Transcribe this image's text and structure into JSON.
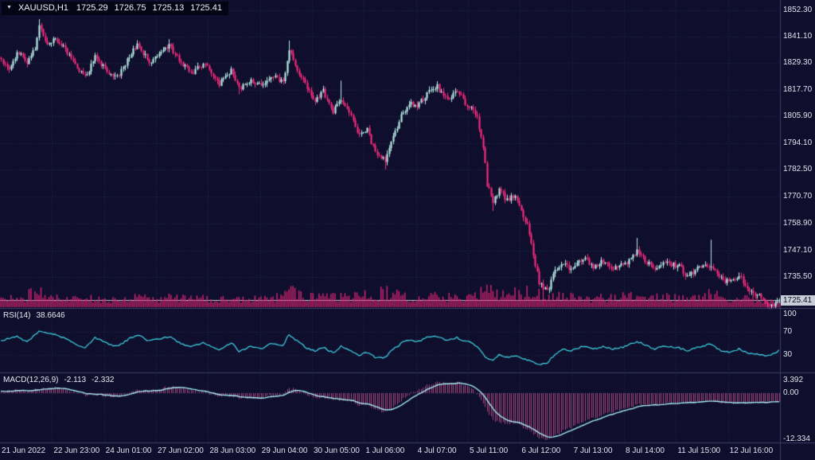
{
  "header": {
    "symbol_period": "XAUUSD,H1",
    "open": "1725.29",
    "high": "1726.75",
    "low": "1725.13",
    "close": "1725.41"
  },
  "icons": {
    "dropdown_triangle": "▼"
  },
  "panes": {
    "rsi": {
      "label": "RSI(14)",
      "value": "38.6646"
    },
    "macd": {
      "label": "MACD(12,26,9)",
      "value_main": "-2.113",
      "value_signal": "-2.332"
    }
  },
  "colors": {
    "background": "#0f0f2d",
    "grid": "#26264e",
    "separator": "#3e3e68",
    "bull": "#b6e9e4",
    "bear": "#f22a7c",
    "volume": "#d92472",
    "rsi_line": "#3fd9e8",
    "macd_signal": "#a6ecf2",
    "macd_histogram": "#a4487a",
    "price_line": "#c2c2d0",
    "axis_text": "#e2e2ee",
    "tag_bg": "#c9cdd8",
    "tag_text": "#0c0c24"
  },
  "chart_data": [
    {
      "type": "candlestick",
      "pane": "main",
      "title": "XAUUSD,H1",
      "current_price": 1725.41,
      "last_ohlc": {
        "open": 1725.29,
        "high": 1726.75,
        "low": 1725.13,
        "close": 1725.41
      },
      "ylim": [
        1722.2,
        1857.0
      ],
      "bars_total": 390,
      "bars_per_x_tick": 26,
      "y_tick_labels": [
        "1852.30",
        "1841.10",
        "1829.30",
        "1817.70",
        "1805.90",
        "1794.10",
        "1782.50",
        "1770.70",
        "1758.90",
        "1747.10",
        "1735.50",
        "1723.70"
      ],
      "x_tick_labels": [
        "21 Jun 2022",
        "22 Jun 23:00",
        "24 Jun 01:00",
        "27 Jun 02:00",
        "28 Jun 03:00",
        "29 Jun 04:00",
        "30 Jun 05:00",
        "1 Jul 06:00",
        "4 Jul 07:00",
        "5 Jul 11:00",
        "6 Jul 12:00",
        "7 Jul 13:00",
        "8 Jul 14:00",
        "11 Jul 15:00",
        "12 Jul 16:00"
      ],
      "close_waypoints": [
        [
          0,
          1831
        ],
        [
          4,
          1826
        ],
        [
          8,
          1834
        ],
        [
          13,
          1830
        ],
        [
          17,
          1836
        ],
        [
          19,
          1846
        ],
        [
          23,
          1838
        ],
        [
          27,
          1840
        ],
        [
          32,
          1835
        ],
        [
          38,
          1828
        ],
        [
          42,
          1823
        ],
        [
          47,
          1832
        ],
        [
          52,
          1827
        ],
        [
          58,
          1823
        ],
        [
          64,
          1832
        ],
        [
          68,
          1838
        ],
        [
          74,
          1830
        ],
        [
          79,
          1833
        ],
        [
          84,
          1837
        ],
        [
          90,
          1829
        ],
        [
          95,
          1825
        ],
        [
          101,
          1829
        ],
        [
          105,
          1825
        ],
        [
          109,
          1820
        ],
        [
          115,
          1826
        ],
        [
          119,
          1818
        ],
        [
          125,
          1822
        ],
        [
          130,
          1819
        ],
        [
          135,
          1824
        ],
        [
          141,
          1821
        ],
        [
          144,
          1835
        ],
        [
          148,
          1826
        ],
        [
          153,
          1818
        ],
        [
          157,
          1813
        ],
        [
          161,
          1817
        ],
        [
          166,
          1808
        ],
        [
          170,
          1813
        ],
        [
          175,
          1806
        ],
        [
          179,
          1797
        ],
        [
          183,
          1800
        ],
        [
          187,
          1790
        ],
        [
          192,
          1786
        ],
        [
          196,
          1797
        ],
        [
          201,
          1808
        ],
        [
          205,
          1812
        ],
        [
          208,
          1810
        ],
        [
          213,
          1816
        ],
        [
          218,
          1819
        ],
        [
          223,
          1813
        ],
        [
          228,
          1817
        ],
        [
          232,
          1812
        ],
        [
          235,
          1810
        ],
        [
          238,
          1805
        ],
        [
          241,
          1793
        ],
        [
          243,
          1776
        ],
        [
          246,
          1768
        ],
        [
          249,
          1774
        ],
        [
          253,
          1769
        ],
        [
          257,
          1772
        ],
        [
          259,
          1766
        ],
        [
          263,
          1758
        ],
        [
          266,
          1745
        ],
        [
          269,
          1733
        ],
        [
          273,
          1729
        ],
        [
          277,
          1738
        ],
        [
          281,
          1742
        ],
        [
          285,
          1739
        ],
        [
          287,
          1741
        ],
        [
          291,
          1744
        ],
        [
          296,
          1740
        ],
        [
          302,
          1743
        ],
        [
          306,
          1739
        ],
        [
          313,
          1742
        ],
        [
          318,
          1747
        ],
        [
          322,
          1743
        ],
        [
          327,
          1739
        ],
        [
          332,
          1742
        ],
        [
          339,
          1740
        ],
        [
          343,
          1736
        ],
        [
          348,
          1739
        ],
        [
          355,
          1741
        ],
        [
          360,
          1735
        ],
        [
          364,
          1733
        ],
        [
          369,
          1736
        ],
        [
          374,
          1730
        ],
        [
          379,
          1727
        ],
        [
          383,
          1724
        ],
        [
          387,
          1723
        ],
        [
          389,
          1725.41
        ]
      ],
      "wick_high_events": [
        [
          19,
          1848.6
        ],
        [
          84,
          1839.8
        ],
        [
          144,
          1839.2
        ],
        [
          170,
          1821.6
        ],
        [
          218,
          1821.4
        ],
        [
          318,
          1752.6
        ],
        [
          355,
          1751.8
        ]
      ],
      "wick_low_events": [
        [
          119,
          1815.6
        ],
        [
          192,
          1782.6
        ],
        [
          246,
          1764.4
        ],
        [
          271,
          1722.8
        ],
        [
          385,
          1721.9
        ]
      ]
    },
    {
      "type": "bar",
      "pane": "main-bottom",
      "name": "volume",
      "normalized_waypoints": [
        [
          0,
          0.35
        ],
        [
          10,
          0.5
        ],
        [
          19,
          0.85
        ],
        [
          27,
          0.5
        ],
        [
          38,
          0.4
        ],
        [
          47,
          0.45
        ],
        [
          52,
          0.4
        ],
        [
          58,
          0.35
        ],
        [
          68,
          0.5
        ],
        [
          79,
          0.45
        ],
        [
          84,
          0.55
        ],
        [
          95,
          0.4
        ],
        [
          105,
          0.45
        ],
        [
          115,
          0.4
        ],
        [
          125,
          0.35
        ],
        [
          130,
          0.5
        ],
        [
          141,
          0.5
        ],
        [
          144,
          0.9
        ],
        [
          153,
          0.5
        ],
        [
          157,
          0.55
        ],
        [
          166,
          0.5
        ],
        [
          175,
          0.55
        ],
        [
          179,
          0.65
        ],
        [
          187,
          0.7
        ],
        [
          192,
          0.8
        ],
        [
          201,
          0.6
        ],
        [
          208,
          0.5
        ],
        [
          218,
          0.55
        ],
        [
          228,
          0.5
        ],
        [
          235,
          0.55
        ],
        [
          241,
          0.95
        ],
        [
          246,
          0.9
        ],
        [
          253,
          0.7
        ],
        [
          259,
          0.75
        ],
        [
          266,
          0.9
        ],
        [
          273,
          0.85
        ],
        [
          281,
          0.6
        ],
        [
          287,
          0.5
        ],
        [
          296,
          0.45
        ],
        [
          306,
          0.5
        ],
        [
          313,
          0.55
        ],
        [
          318,
          0.7
        ],
        [
          327,
          0.5
        ],
        [
          339,
          0.5
        ],
        [
          348,
          0.45
        ],
        [
          355,
          0.7
        ],
        [
          364,
          0.5
        ],
        [
          374,
          0.45
        ],
        [
          383,
          0.4
        ],
        [
          389,
          0.3
        ]
      ]
    },
    {
      "type": "line",
      "pane": "rsi",
      "name": "RSI(14)",
      "current_value": 38.6646,
      "ylim": [
        2,
        108
      ],
      "axis_labels": [
        "100",
        "70",
        "30"
      ],
      "levels": [
        70,
        30
      ],
      "waypoints": [
        [
          0,
          55
        ],
        [
          8,
          62
        ],
        [
          13,
          52
        ],
        [
          19,
          72
        ],
        [
          27,
          66
        ],
        [
          38,
          48
        ],
        [
          42,
          43
        ],
        [
          47,
          60
        ],
        [
          52,
          52
        ],
        [
          58,
          45
        ],
        [
          64,
          58
        ],
        [
          68,
          65
        ],
        [
          74,
          54
        ],
        [
          84,
          62
        ],
        [
          90,
          50
        ],
        [
          95,
          44
        ],
        [
          101,
          52
        ],
        [
          105,
          46
        ],
        [
          109,
          38
        ],
        [
          115,
          52
        ],
        [
          119,
          37
        ],
        [
          125,
          45
        ],
        [
          130,
          41
        ],
        [
          135,
          50
        ],
        [
          141,
          46
        ],
        [
          144,
          66
        ],
        [
          148,
          54
        ],
        [
          153,
          42
        ],
        [
          157,
          37
        ],
        [
          161,
          44
        ],
        [
          166,
          34
        ],
        [
          170,
          45
        ],
        [
          175,
          38
        ],
        [
          179,
          30
        ],
        [
          183,
          35
        ],
        [
          187,
          27
        ],
        [
          192,
          26
        ],
        [
          196,
          40
        ],
        [
          201,
          52
        ],
        [
          205,
          56
        ],
        [
          208,
          53
        ],
        [
          213,
          60
        ],
        [
          218,
          63
        ],
        [
          223,
          55
        ],
        [
          228,
          60
        ],
        [
          232,
          54
        ],
        [
          235,
          52
        ],
        [
          238,
          45
        ],
        [
          241,
          33
        ],
        [
          243,
          24
        ],
        [
          246,
          21
        ],
        [
          249,
          30
        ],
        [
          253,
          26
        ],
        [
          257,
          30
        ],
        [
          259,
          26
        ],
        [
          263,
          22
        ],
        [
          266,
          18
        ],
        [
          269,
          15
        ],
        [
          273,
          17
        ],
        [
          277,
          32
        ],
        [
          281,
          40
        ],
        [
          285,
          37
        ],
        [
          287,
          40
        ],
        [
          291,
          45
        ],
        [
          296,
          41
        ],
        [
          302,
          45
        ],
        [
          306,
          40
        ],
        [
          313,
          46
        ],
        [
          318,
          54
        ],
        [
          322,
          47
        ],
        [
          327,
          41
        ],
        [
          332,
          46
        ],
        [
          339,
          43
        ],
        [
          343,
          38
        ],
        [
          348,
          43
        ],
        [
          355,
          49
        ],
        [
          360,
          38
        ],
        [
          364,
          35
        ],
        [
          369,
          41
        ],
        [
          374,
          33
        ],
        [
          379,
          31
        ],
        [
          383,
          28
        ],
        [
          387,
          33
        ],
        [
          389,
          38.66
        ]
      ]
    },
    {
      "type": "histogram+line",
      "pane": "macd",
      "name": "MACD(12,26,9)",
      "current_values": [
        -2.113,
        -2.332
      ],
      "ylim": [
        -12.96,
        5.1
      ],
      "axis_labels": [
        "3.392",
        "0.00",
        "-12.334"
      ],
      "levels": [
        0
      ],
      "waypoints": [
        [
          0,
          0.3
        ],
        [
          8,
          0.8
        ],
        [
          13,
          0.5
        ],
        [
          19,
          1.2
        ],
        [
          27,
          1.4
        ],
        [
          32,
          0.9
        ],
        [
          38,
          0.1
        ],
        [
          42,
          -0.6
        ],
        [
          47,
          -0.2
        ],
        [
          52,
          -0.7
        ],
        [
          58,
          -1.0
        ],
        [
          64,
          0.2
        ],
        [
          68,
          0.9
        ],
        [
          74,
          0.6
        ],
        [
          79,
          1.0
        ],
        [
          84,
          1.9
        ],
        [
          90,
          1.4
        ],
        [
          95,
          0.6
        ],
        [
          101,
          0.2
        ],
        [
          105,
          -0.3
        ],
        [
          109,
          -1.0
        ],
        [
          115,
          -0.6
        ],
        [
          119,
          -1.4
        ],
        [
          125,
          -1.1
        ],
        [
          130,
          -1.3
        ],
        [
          135,
          -0.6
        ],
        [
          141,
          -0.3
        ],
        [
          144,
          1.3
        ],
        [
          148,
          0.9
        ],
        [
          153,
          -0.4
        ],
        [
          157,
          -1.2
        ],
        [
          161,
          -1.0
        ],
        [
          166,
          -2.0
        ],
        [
          170,
          -1.6
        ],
        [
          175,
          -2.2
        ],
        [
          179,
          -3.4
        ],
        [
          183,
          -3.0
        ],
        [
          187,
          -4.4
        ],
        [
          192,
          -5.2
        ],
        [
          196,
          -3.6
        ],
        [
          201,
          -1.6
        ],
        [
          205,
          0.2
        ],
        [
          208,
          0.8
        ],
        [
          213,
          2.0
        ],
        [
          218,
          2.9
        ],
        [
          223,
          2.4
        ],
        [
          228,
          2.8
        ],
        [
          232,
          2.0
        ],
        [
          235,
          1.2
        ],
        [
          238,
          -0.2
        ],
        [
          241,
          -2.6
        ],
        [
          243,
          -5.0
        ],
        [
          246,
          -7.2
        ],
        [
          249,
          -7.6
        ],
        [
          253,
          -8.2
        ],
        [
          257,
          -8.0
        ],
        [
          259,
          -8.6
        ],
        [
          263,
          -9.6
        ],
        [
          266,
          -10.8
        ],
        [
          269,
          -11.8
        ],
        [
          273,
          -12.33
        ],
        [
          277,
          -11.2
        ],
        [
          281,
          -10.0
        ],
        [
          285,
          -9.2
        ],
        [
          287,
          -8.6
        ],
        [
          291,
          -7.6
        ],
        [
          296,
          -6.6
        ],
        [
          302,
          -5.6
        ],
        [
          306,
          -5.0
        ],
        [
          313,
          -4.0
        ],
        [
          318,
          -3.2
        ],
        [
          322,
          -3.0
        ],
        [
          327,
          -3.1
        ],
        [
          332,
          -2.8
        ],
        [
          339,
          -2.6
        ],
        [
          343,
          -2.7
        ],
        [
          348,
          -2.4
        ],
        [
          355,
          -2.0
        ],
        [
          360,
          -2.4
        ],
        [
          364,
          -2.7
        ],
        [
          369,
          -2.5
        ],
        [
          374,
          -2.6
        ],
        [
          379,
          -2.4
        ],
        [
          383,
          -2.3
        ],
        [
          387,
          -2.2
        ],
        [
          389,
          -2.113
        ]
      ]
    }
  ]
}
